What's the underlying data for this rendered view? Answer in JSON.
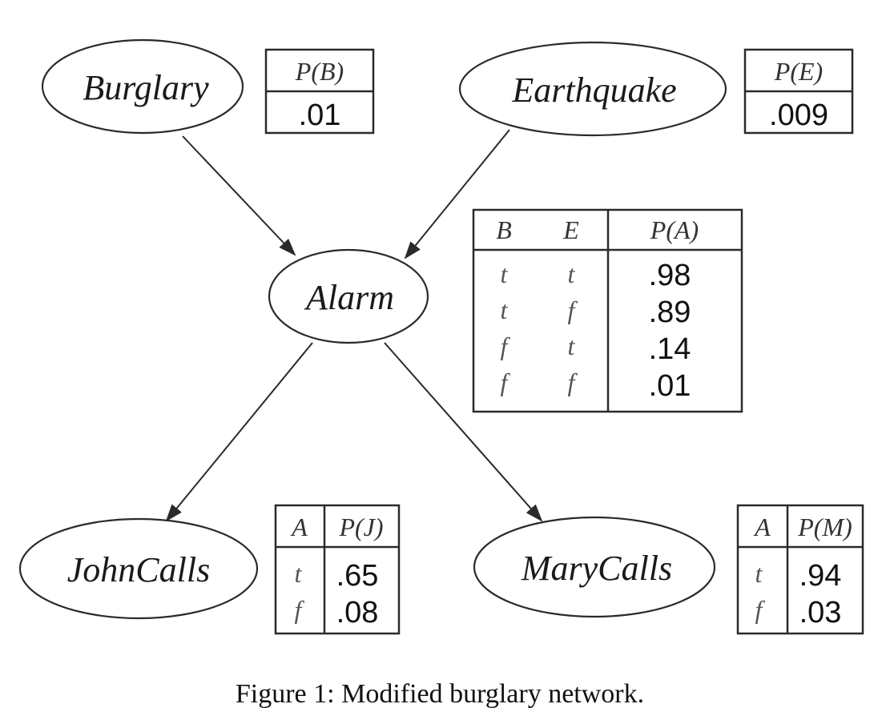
{
  "nodes": {
    "burglary": "Burglary",
    "earthquake": "Earthquake",
    "alarm": "Alarm",
    "johncalls": "JohnCalls",
    "marycalls": "MaryCalls"
  },
  "edges": [
    {
      "from": "Burglary",
      "to": "Alarm"
    },
    {
      "from": "Earthquake",
      "to": "Alarm"
    },
    {
      "from": "Alarm",
      "to": "JohnCalls"
    },
    {
      "from": "Alarm",
      "to": "MaryCalls"
    }
  ],
  "cpt_b": {
    "header": "P(B)",
    "value": ".01"
  },
  "cpt_e": {
    "header": "P(E)",
    "value": ".009"
  },
  "cpt_a": {
    "headers": [
      "B",
      "E",
      "P(A)"
    ],
    "rows": [
      [
        "t",
        "t",
        ".98"
      ],
      [
        "t",
        "f",
        ".89"
      ],
      [
        "f",
        "t",
        ".14"
      ],
      [
        "f",
        "f",
        ".01"
      ]
    ]
  },
  "cpt_j": {
    "headers": [
      "A",
      "P(J)"
    ],
    "rows": [
      [
        "t",
        ".65"
      ],
      [
        "f",
        ".08"
      ]
    ]
  },
  "cpt_m": {
    "headers": [
      "A",
      "P(M)"
    ],
    "rows": [
      [
        "t",
        ".94"
      ],
      [
        "f",
        ".03"
      ]
    ]
  },
  "caption": "Figure 1: Modified burglary network."
}
